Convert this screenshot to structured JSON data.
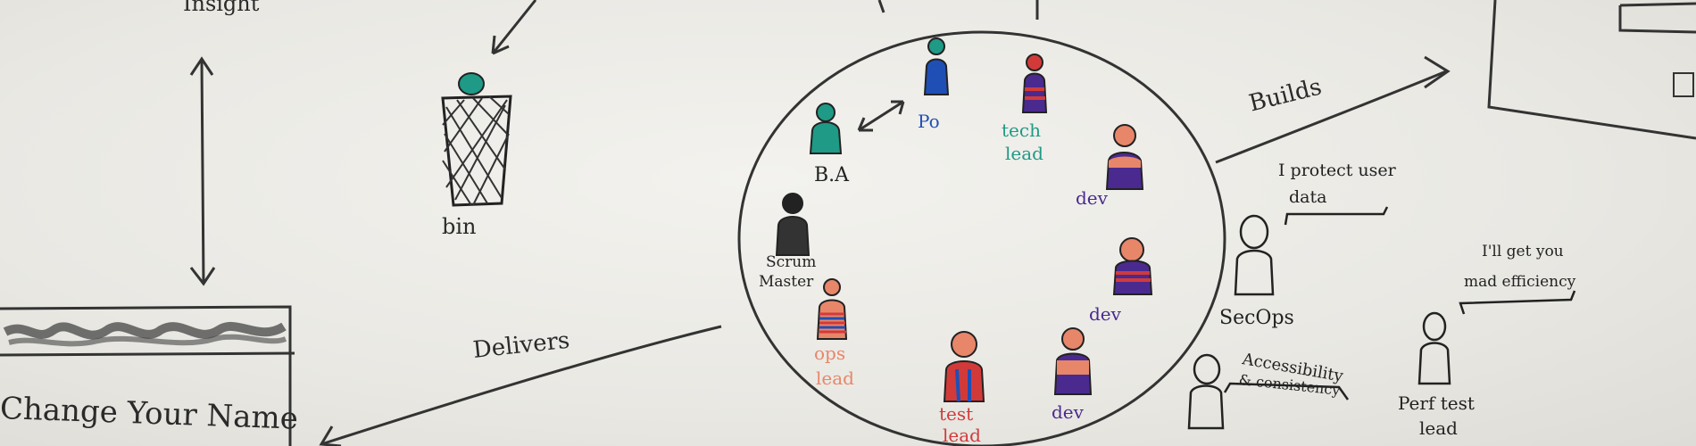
{
  "labels": {
    "insight": "Insight",
    "bin": "bin",
    "delivers": "Delivers",
    "builds": "Builds",
    "change_name": "Change Your Name"
  },
  "roles": {
    "ba": "B.A",
    "po": "Po",
    "tech_lead_1": "tech",
    "tech_lead_2": "lead",
    "dev": "dev",
    "scrum_1": "Scrum",
    "scrum_2": "Master",
    "ops_1": "ops",
    "ops_2": "lead",
    "test_1": "test",
    "test_2": "lead",
    "secops": "SecOps",
    "perf_1": "Perf test",
    "perf_2": "lead"
  },
  "speech": {
    "secops_1": "I protect user",
    "secops_2": "data",
    "perf_1": "I'll get you",
    "perf_2": "mad efficiency",
    "access_1": "Accessibility",
    "access_2": "& consistency"
  },
  "colors": {
    "ink": "#2a2a2a",
    "teal": "#1e9a86",
    "blue": "#1f4fb5",
    "purple": "#4a2a8f",
    "orange": "#e8866a",
    "red": "#d23a3a",
    "black": "#222222"
  }
}
